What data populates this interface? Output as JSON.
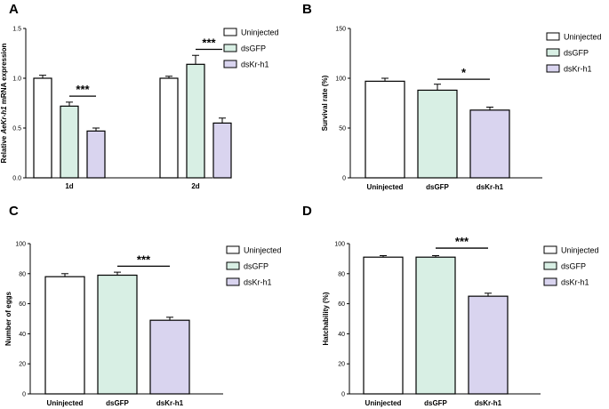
{
  "colors": {
    "Uninjected": "#ffffff",
    "dsGFP": "#d8efe4",
    "dsKr-h1": "#d9d4ef",
    "stroke": "#000000"
  },
  "chart_data": [
    {
      "panel": "A",
      "type": "bar",
      "ylabel_parts": [
        "Relative ",
        "AeKr-h1",
        " mRNA expression"
      ],
      "categories": [
        "1d",
        "2d"
      ],
      "series": [
        {
          "name": "Uninjected",
          "values": [
            1.0,
            1.0
          ],
          "errors": [
            0.03,
            0.02
          ]
        },
        {
          "name": "dsGFP",
          "values": [
            0.72,
            1.14
          ],
          "errors": [
            0.04,
            0.09
          ]
        },
        {
          "name": "dsKr-h1",
          "values": [
            0.47,
            0.55
          ],
          "errors": [
            0.03,
            0.05
          ]
        }
      ],
      "ylim": [
        0,
        1.5
      ],
      "yticks": [
        "0.0",
        "0.5",
        "1.0",
        "1.5"
      ],
      "legend": [
        "Uninjected",
        "dsGFP",
        "dsKr-h1"
      ],
      "annotations": [
        {
          "text": "***",
          "category": 0,
          "from": 1,
          "to": 2,
          "at": 0.82
        },
        {
          "text": "***",
          "category": 1,
          "from": 1,
          "to": 2,
          "at": 1.29
        }
      ]
    },
    {
      "panel": "B",
      "type": "bar",
      "ylabel": "Survival rate (%)",
      "categories": [
        "Uninjected",
        "dsGFP",
        "dsKr-h1"
      ],
      "values": [
        97,
        88,
        68
      ],
      "errors": [
        3,
        6,
        3
      ],
      "ylim": [
        0,
        150
      ],
      "yticks": [
        "0",
        "50",
        "100",
        "150"
      ],
      "legend": [
        "Uninjected",
        "dsGFP",
        "dsKr-h1"
      ],
      "annotations": [
        {
          "text": "*",
          "from": 1,
          "to": 2,
          "at": 99
        }
      ]
    },
    {
      "panel": "C",
      "type": "bar",
      "ylabel": "Number of eggs",
      "categories": [
        "Uninjected",
        "dsGFP",
        "dsKr-h1"
      ],
      "values": [
        78,
        79,
        49
      ],
      "errors": [
        2,
        2,
        2
      ],
      "ylim": [
        0,
        100
      ],
      "yticks": [
        "0",
        "20",
        "40",
        "60",
        "80",
        "100"
      ],
      "legend": [
        "Uninjected",
        "dsGFP",
        "dsKr-h1"
      ],
      "annotations": [
        {
          "text": "***",
          "from": 1,
          "to": 2,
          "at": 85
        }
      ]
    },
    {
      "panel": "D",
      "type": "bar",
      "ylabel": "Hatchability (%)",
      "categories": [
        "Uninjected",
        "dsGFP",
        "dsKr-h1"
      ],
      "values": [
        91,
        91,
        65
      ],
      "errors": [
        1,
        1,
        2
      ],
      "ylim": [
        0,
        100
      ],
      "yticks": [
        "0",
        "20",
        "40",
        "60",
        "80",
        "100"
      ],
      "legend": [
        "Uninjected",
        "dsGFP",
        "dsKr-h1"
      ],
      "annotations": [
        {
          "text": "***",
          "from": 1,
          "to": 2,
          "at": 97
        }
      ]
    }
  ]
}
